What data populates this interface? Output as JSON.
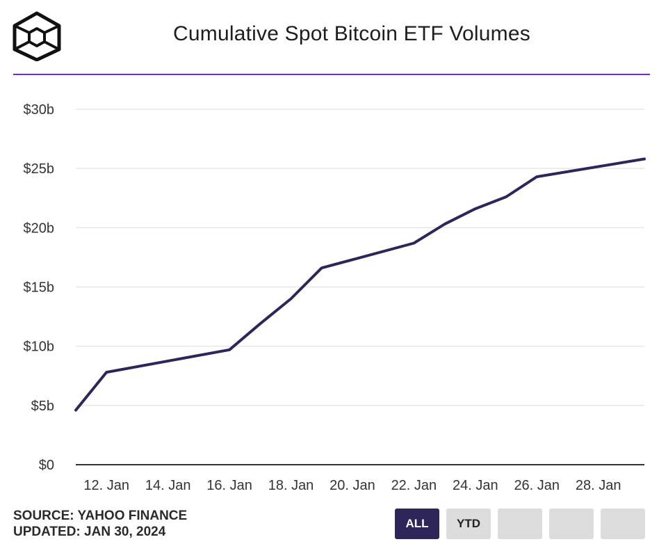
{
  "header": {
    "title": "Cumulative Spot Bitcoin ETF Volumes",
    "logo_icon": "cube-logo-icon"
  },
  "footer": {
    "source": "SOURCE: YAHOO FINANCE",
    "updated": "UPDATED: JAN 30, 2024"
  },
  "range_buttons": [
    {
      "label": "ALL",
      "active": true
    },
    {
      "label": "YTD",
      "active": false
    },
    {
      "label": "",
      "active": false
    },
    {
      "label": "",
      "active": false
    },
    {
      "label": "",
      "active": false
    }
  ],
  "colors": {
    "line": "#2e2658",
    "accent_rule": "#7a2ac6",
    "button_active": "#2e2658",
    "button_inactive": "#dcdcdc",
    "grid": "#e6e6e6"
  },
  "chart_data": {
    "type": "line",
    "title": "Cumulative Spot Bitcoin ETF Volumes",
    "xlabel": "",
    "ylabel": "",
    "x_unit": "date (Jan 2024)",
    "y_unit": "USD billions",
    "xlim": [
      11.0,
      29.5
    ],
    "ylim": [
      0,
      30
    ],
    "y_ticks": [
      {
        "value": 0,
        "label": "$0"
      },
      {
        "value": 5,
        "label": "$5b"
      },
      {
        "value": 10,
        "label": "$10b"
      },
      {
        "value": 15,
        "label": "$15b"
      },
      {
        "value": 20,
        "label": "$20b"
      },
      {
        "value": 25,
        "label": "$25b"
      },
      {
        "value": 30,
        "label": "$30b"
      }
    ],
    "x_ticks": [
      {
        "value": 12,
        "label": "12. Jan"
      },
      {
        "value": 14,
        "label": "14. Jan"
      },
      {
        "value": 16,
        "label": "16. Jan"
      },
      {
        "value": 18,
        "label": "18. Jan"
      },
      {
        "value": 20,
        "label": "20. Jan"
      },
      {
        "value": 22,
        "label": "22. Jan"
      },
      {
        "value": 24,
        "label": "24. Jan"
      },
      {
        "value": 26,
        "label": "26. Jan"
      },
      {
        "value": 28,
        "label": "28. Jan"
      }
    ],
    "grid": true,
    "legend": "none",
    "series": [
      {
        "x": [
          "2024-01-11",
          "2024-01-12",
          "2024-01-16",
          "2024-01-17",
          "2024-01-18",
          "2024-01-19",
          "2024-01-22",
          "2024-01-23",
          "2024-01-24",
          "2024-01-25",
          "2024-01-26",
          "2024-01-29"
        ],
        "day": [
          11,
          12,
          16,
          17,
          18,
          19,
          22,
          23,
          24,
          25,
          26,
          29.5
        ],
        "values": [
          4.6,
          7.8,
          9.7,
          11.9,
          14.0,
          16.6,
          18.7,
          20.3,
          21.6,
          22.6,
          24.3,
          25.8
        ]
      }
    ]
  }
}
